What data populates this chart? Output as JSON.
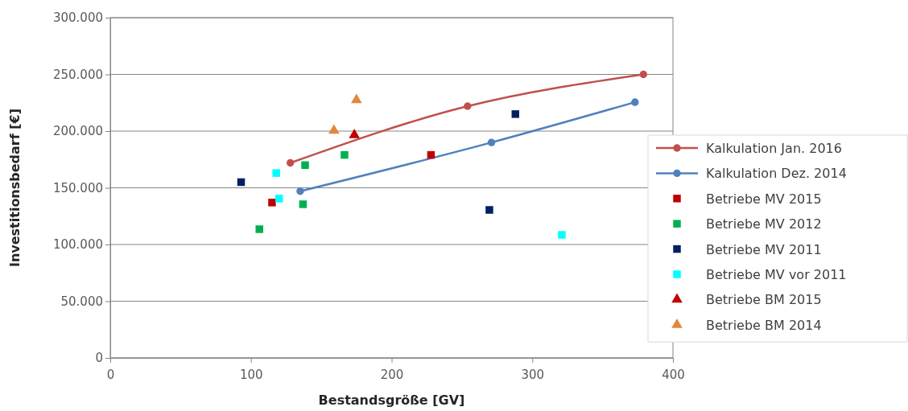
{
  "chart_data": {
    "type": "scatter",
    "xlabel": "Bestandsgröße [GV]",
    "ylabel": "Investitionsbedarf [€]",
    "xlim": [
      0,
      400
    ],
    "xticks": [
      0,
      100,
      200,
      300,
      400
    ],
    "ylim": [
      0,
      300000
    ],
    "yticks": [
      {
        "value": 0,
        "label": "0"
      },
      {
        "value": 50000,
        "label": "50.000"
      },
      {
        "value": 100000,
        "label": "100.000"
      },
      {
        "value": 150000,
        "label": "150.000"
      },
      {
        "value": 200000,
        "label": "200.000"
      },
      {
        "value": 250000,
        "label": "250.000"
      },
      {
        "value": 300000,
        "label": "300.000"
      }
    ],
    "grid": "y",
    "legend": "right",
    "series": [
      {
        "name": "Kalkulation Jan. 2016",
        "type": "line",
        "marker": "circle",
        "color": "#c0504d",
        "x": [
          128,
          254,
          379
        ],
        "values": [
          172000,
          222000,
          250000
        ]
      },
      {
        "name": "Kalkulation Dez. 2014",
        "type": "line",
        "marker": "circle",
        "color": "#4f81bd",
        "x": [
          135,
          271,
          373
        ],
        "values": [
          147000,
          190000,
          225500
        ]
      },
      {
        "name": "Betriebe MV 2015",
        "marker": "square",
        "color": "#c00000",
        "x": [
          115,
          228
        ],
        "values": [
          137000,
          179000
        ]
      },
      {
        "name": "Betriebe MV 2012",
        "marker": "square",
        "color": "#00b050",
        "x": [
          106,
          138.5,
          137,
          166.5
        ],
        "values": [
          113500,
          170000,
          135500,
          179000
        ]
      },
      {
        "name": "Betriebe MV 2011",
        "marker": "square",
        "color": "#002060",
        "x": [
          93,
          269.5,
          288
        ],
        "values": [
          155000,
          130500,
          215000
        ]
      },
      {
        "name": "Betriebe MV vor 2011",
        "marker": "square",
        "color": "#00ffff",
        "x": [
          118,
          120,
          321
        ],
        "values": [
          163000,
          140500,
          108500
        ]
      },
      {
        "name": "Betriebe BM 2015",
        "marker": "triangle",
        "color": "#c00000",
        "x": [
          173.5
        ],
        "values": [
          196500
        ]
      },
      {
        "name": "Betriebe BM 2014",
        "marker": "triangle",
        "color": "#e0883c",
        "x": [
          159,
          175
        ],
        "values": [
          200500,
          227500
        ]
      }
    ]
  }
}
